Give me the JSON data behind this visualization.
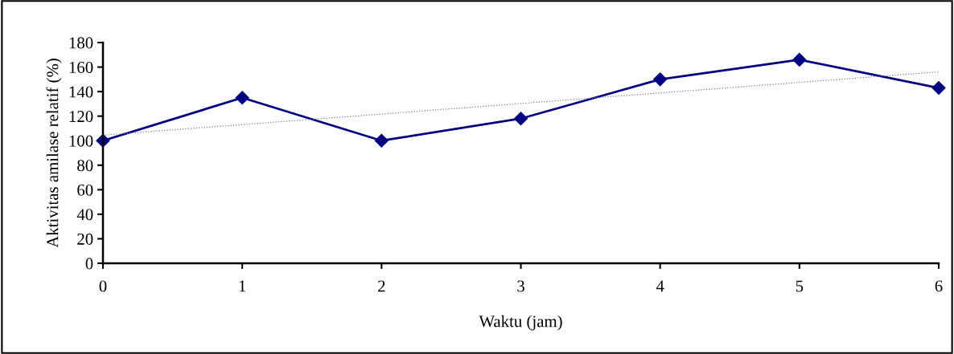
{
  "chart_data": {
    "type": "line",
    "xlabel": "Waktu (jam)",
    "ylabel": "Aktivitas amilase relatif (%)",
    "x": [
      0,
      1,
      2,
      3,
      4,
      5,
      6
    ],
    "series": [
      {
        "color": "#000080",
        "values": [
          100,
          135,
          100,
          118,
          150,
          166,
          143
        ],
        "marker": "diamond",
        "line_style": "solid"
      },
      {
        "type": "line",
        "color": "#808080",
        "x": [
          0,
          6
        ],
        "values": [
          104.5,
          156.1
        ],
        "marker": "none",
        "line_style": "dotted"
      }
    ],
    "xlim": [
      0,
      6
    ],
    "xticks": [
      0,
      1,
      2,
      3,
      4,
      5,
      6
    ],
    "ylim": [
      0,
      180
    ],
    "yticks": [
      0,
      20,
      40,
      60,
      80,
      100,
      120,
      140,
      160,
      180
    ],
    "grid": false,
    "legend": false
  }
}
